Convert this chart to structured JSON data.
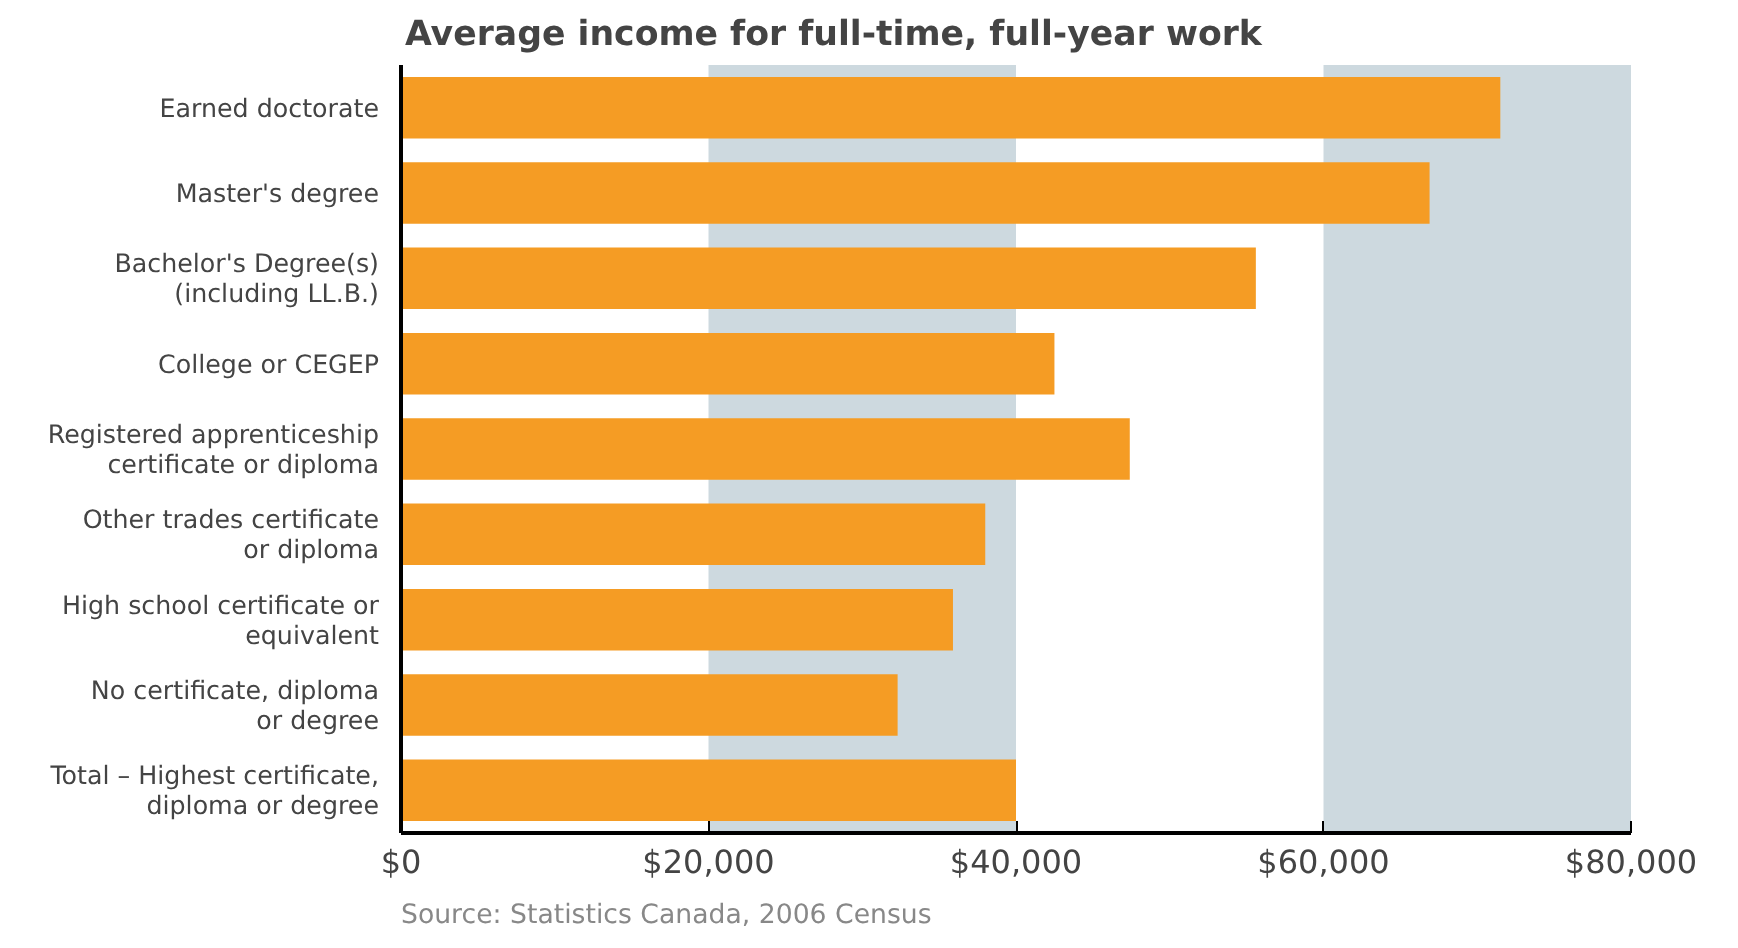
{
  "chart_data": {
    "type": "bar",
    "orientation": "horizontal",
    "title": "Average income for full-time, full-year work",
    "categories": [
      "Earned doctorate",
      "Master's degree",
      "Bachelor's Degree(s)\n(including LL.B.)",
      "College or CEGEP",
      "Registered apprenticeship\ncertificate or diploma",
      "Other trades certificate\nor diploma",
      "High school certificate or\nequivalent",
      "No certificate, diploma\nor degree",
      "Total – Highest certificate,\ndiploma or degree"
    ],
    "values": [
      71500,
      66900,
      55600,
      42500,
      47400,
      38000,
      35900,
      32300,
      40000
    ],
    "color": "#f59c24",
    "xlim": [
      0,
      80000
    ],
    "xticks": [
      {
        "value": 0,
        "label": "$0"
      },
      {
        "value": 20000,
        "label": "$20,000"
      },
      {
        "value": 40000,
        "label": "$40,000"
      },
      {
        "value": 60000,
        "label": "$60,000"
      },
      {
        "value": 80000,
        "label": "$80,000"
      }
    ],
    "bands": [
      {
        "axis": "x",
        "from": 20000,
        "to": 40000,
        "label": null,
        "color": "#cdd9df"
      },
      {
        "axis": "x",
        "from": 60000,
        "to": 80000,
        "label": null,
        "color": "#cdd9df"
      }
    ],
    "grid": false,
    "annotations": [
      "Source: Statistics Canada, 2006 Census"
    ]
  }
}
